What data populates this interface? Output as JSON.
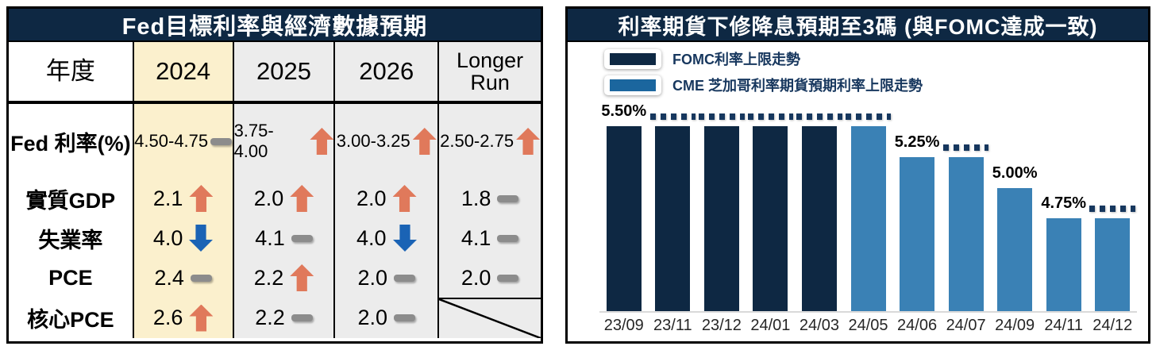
{
  "left_panel": {
    "title": "Fed目標利率與經濟數據預期",
    "header": [
      "年度",
      "2024",
      "2025",
      "2026",
      "Longer Run"
    ],
    "rows": [
      {
        "label": "Fed 利率(%)",
        "cells": [
          {
            "value": "4.50-4.75",
            "trend": "flat"
          },
          {
            "value": "3.75-4.00",
            "trend": "up"
          },
          {
            "value": "3.00-3.25",
            "trend": "up"
          },
          {
            "value": "2.50-2.75",
            "trend": "up"
          }
        ]
      },
      {
        "label": "實質GDP",
        "cells": [
          {
            "value": "2.1",
            "trend": "up"
          },
          {
            "value": "2.0",
            "trend": "up"
          },
          {
            "value": "2.0",
            "trend": "up"
          },
          {
            "value": "1.8",
            "trend": "flat"
          }
        ]
      },
      {
        "label": "失業率",
        "cells": [
          {
            "value": "4.0",
            "trend": "down"
          },
          {
            "value": "4.1",
            "trend": "flat"
          },
          {
            "value": "4.0",
            "trend": "down"
          },
          {
            "value": "4.1",
            "trend": "flat"
          }
        ]
      },
      {
        "label": "PCE",
        "cells": [
          {
            "value": "2.4",
            "trend": "flat"
          },
          {
            "value": "2.2",
            "trend": "up"
          },
          {
            "value": "2.0",
            "trend": "flat"
          },
          {
            "value": "2.0",
            "trend": "flat"
          }
        ]
      },
      {
        "label": "核心PCE",
        "cells": [
          {
            "value": "2.6",
            "trend": "up"
          },
          {
            "value": "2.2",
            "trend": "flat"
          },
          {
            "value": "2.0",
            "trend": "flat"
          },
          {
            "value": null,
            "trend": "na"
          }
        ]
      }
    ],
    "colors": {
      "highlight_column": "#FBF0CD",
      "normal_column": "#ECECEC",
      "up_arrow": "#E0795B",
      "down_arrow": "#1A63B5",
      "flat_dash": "#8C8C8C"
    }
  },
  "chart_data": {
    "type": "bar",
    "title": "利率期貨下修降息預期至3碼 (與FOMC達成一致)",
    "legend": [
      {
        "name": "FOMC利率上限走勢",
        "color": "#0E2843"
      },
      {
        "name": "CME 芝加哥利率期貨預期利率上限走勢",
        "color": "#1B669E"
      }
    ],
    "categories": [
      "23/09",
      "23/11",
      "23/12",
      "24/01",
      "24/03",
      "24/05",
      "24/06",
      "24/07",
      "24/09",
      "24/11",
      "24/12"
    ],
    "ylim": [
      4.0,
      5.75
    ],
    "series_colors": {
      "FOMC": "#0E2843",
      "CME": "#3A81B5"
    },
    "bars": [
      {
        "month": "23/09",
        "value": 5.5,
        "series": "FOMC",
        "callout": "5.50%"
      },
      {
        "month": "23/11",
        "value": 5.5,
        "series": "FOMC",
        "dots": true
      },
      {
        "month": "23/12",
        "value": 5.5,
        "series": "FOMC",
        "dots": true
      },
      {
        "month": "24/01",
        "value": 5.5,
        "series": "FOMC",
        "dots": true
      },
      {
        "month": "24/03",
        "value": 5.5,
        "series": "FOMC",
        "dots": true
      },
      {
        "month": "24/05",
        "value": 5.5,
        "series": "CME",
        "dots": true
      },
      {
        "month": "24/06",
        "value": 5.25,
        "series": "CME",
        "callout": "5.25%"
      },
      {
        "month": "24/07",
        "value": 5.25,
        "series": "CME",
        "dots": true
      },
      {
        "month": "24/09",
        "value": 5.0,
        "series": "CME",
        "callout": "5.00%"
      },
      {
        "month": "24/11",
        "value": 4.75,
        "series": "CME",
        "callout": "4.75%"
      },
      {
        "month": "24/12",
        "value": 4.75,
        "series": "CME",
        "dots": true
      }
    ]
  },
  "colors": {
    "navy": "#0E2843",
    "axis_line": "#D9D9D9",
    "dotted_line": "#16375E"
  }
}
